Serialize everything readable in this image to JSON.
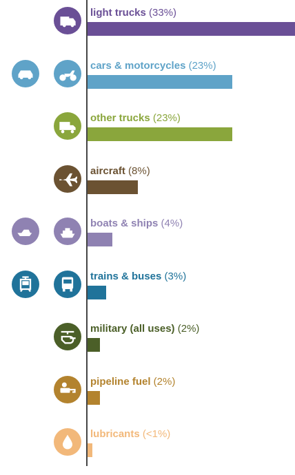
{
  "chart_data": {
    "type": "bar",
    "orientation": "horizontal",
    "categories": [
      "light trucks",
      "cars & motorcycles",
      "other trucks",
      "aircraft",
      "boats & ships",
      "trains & buses",
      "military (all uses)",
      "pipeline fuel",
      "lubricants"
    ],
    "value_labels": [
      "(33%)",
      "(23%)",
      "(23%)",
      "(8%)",
      "(4%)",
      "(3%)",
      "(2%)",
      "(2%)",
      "(<1%)"
    ],
    "values": [
      33,
      23,
      23,
      8,
      4,
      3,
      2,
      2,
      0.8
    ],
    "xlim": [
      0,
      33
    ],
    "grid": false,
    "legend": "none",
    "colors": [
      "#6a4f96",
      "#5fa3c8",
      "#8aa63c",
      "#6b5232",
      "#8f82b2",
      "#20739a",
      "#4b5f28",
      "#b3832e",
      "#f2b87a"
    ],
    "icons": [
      [
        "pickup-truck-icon"
      ],
      [
        "car-icon",
        "motorcycle-icon"
      ],
      [
        "delivery-truck-icon"
      ],
      [
        "airplane-icon"
      ],
      [
        "speedboat-icon",
        "cruise-ship-icon"
      ],
      [
        "tram-icon",
        "bus-icon"
      ],
      [
        "helicopter-icon"
      ],
      [
        "fuel-pump-icon"
      ],
      [
        "oil-drop-icon"
      ]
    ]
  }
}
